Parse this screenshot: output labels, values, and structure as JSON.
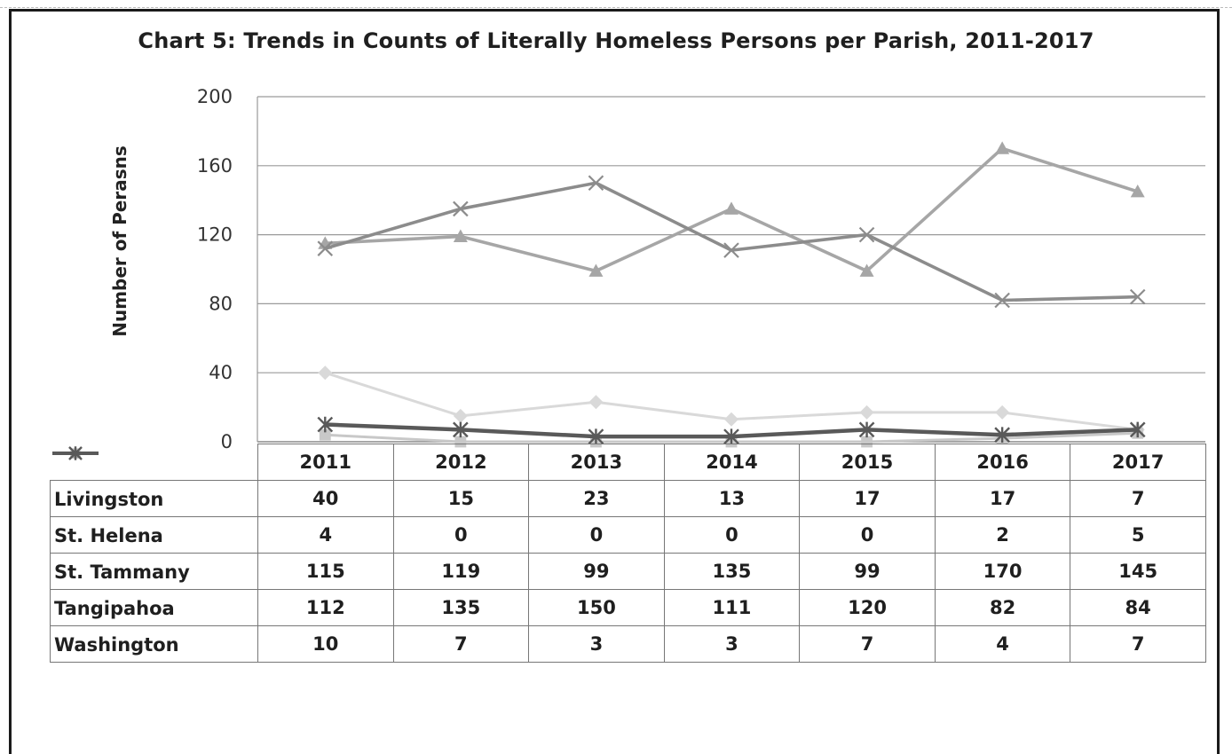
{
  "chart_data": {
    "type": "line",
    "title": "Chart 5: Trends in Counts of Literally Homeless Persons per Parish, 2011-2017",
    "xlabel": "",
    "ylabel": "Number of Perasns",
    "ylim": [
      0,
      200
    ],
    "yticks": [
      0,
      40,
      80,
      120,
      160,
      200
    ],
    "grid": true,
    "legend_position": "data-table-left",
    "categories": [
      "2011",
      "2012",
      "2013",
      "2014",
      "2015",
      "2016",
      "2017"
    ],
    "series": [
      {
        "name": "Livingston",
        "values": [
          40,
          15,
          23,
          13,
          17,
          17,
          7
        ],
        "color": "#d9d9d9",
        "marker": "diamond"
      },
      {
        "name": "St. Helena",
        "values": [
          4,
          0,
          0,
          0,
          0,
          2,
          5
        ],
        "color": "#c8c8c8",
        "marker": "square"
      },
      {
        "name": "St. Tammany",
        "values": [
          115,
          119,
          99,
          135,
          99,
          170,
          145
        ],
        "color": "#a6a6a6",
        "marker": "triangle"
      },
      {
        "name": "Tangipahoa",
        "values": [
          112,
          135,
          150,
          111,
          120,
          82,
          84
        ],
        "color": "#8c8c8c",
        "marker": "x"
      },
      {
        "name": "Washington",
        "values": [
          10,
          7,
          3,
          3,
          7,
          4,
          7
        ],
        "color": "#595959",
        "marker": "star"
      }
    ]
  }
}
